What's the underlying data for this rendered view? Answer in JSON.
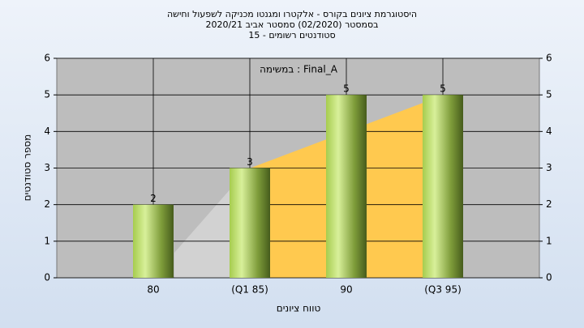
{
  "chart_data": {
    "type": "bar",
    "title": [
      "היסטוגרמת ציונים בקורס - אלקטרו ומגנטו מכניקה לשפעול וחישה",
      "בסמסטר  (02/2020)  סמסטר אביב 2020/21",
      "סטודנטים רשומים - 15"
    ],
    "annotation": "במשימה : Final_A",
    "x_label": "טווח ציונים",
    "y_label": "מספר סטודנטים",
    "categories": [
      "80",
      "(Q1 85)",
      "90",
      "(Q3 95)"
    ],
    "values": [
      2,
      3,
      5,
      5
    ],
    "color": "#8db33f",
    "ylim": [
      0,
      6
    ],
    "yticks": [
      0,
      1,
      2,
      3,
      4,
      5,
      6
    ],
    "y2lim": [
      0,
      6
    ],
    "y2ticks": [
      0,
      1,
      2,
      3,
      4,
      5,
      6
    ],
    "grid": true
  }
}
